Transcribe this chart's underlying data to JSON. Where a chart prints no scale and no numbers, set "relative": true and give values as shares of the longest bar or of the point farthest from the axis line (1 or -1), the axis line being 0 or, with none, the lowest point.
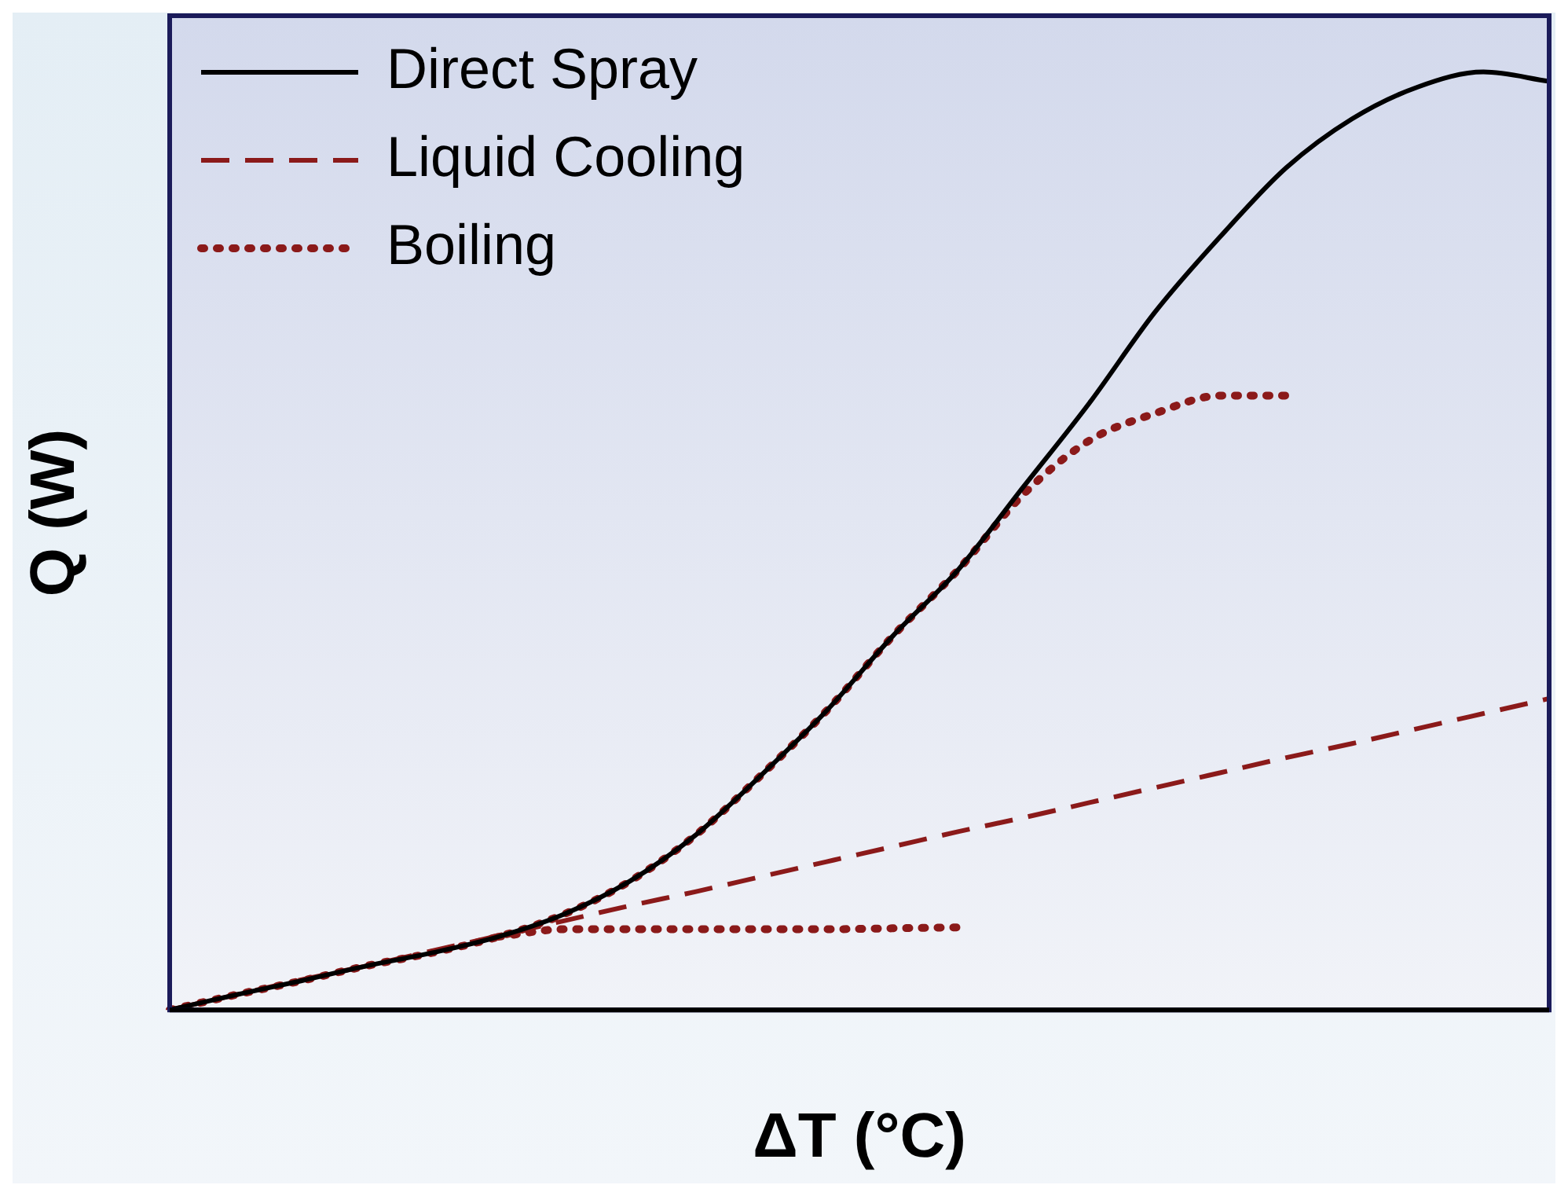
{
  "chart_data": {
    "type": "line",
    "relative": true,
    "xlabel": "ΔT (°C)",
    "ylabel": "Q (W)",
    "legend": "top left",
    "marker": "none",
    "categories": [
      null,
      null,
      null,
      null,
      null,
      null,
      null,
      null,
      null,
      null,
      null,
      null,
      null,
      null,
      null,
      null,
      null,
      null,
      null,
      null,
      null,
      null
    ],
    "series": [
      {
        "name": "Direct Spray",
        "color": "#000000",
        "line_style": "solid",
        "values": [
          0,
          0.016,
          0.031,
          0.047,
          0.061,
          0.078,
          0.102,
          0.137,
          0.186,
          0.25,
          0.319,
          0.398,
          0.469,
          0.558,
          0.647,
          0.744,
          0.825,
          0.898,
          0.95,
          0.984,
          1.0,
          0.99
        ]
      },
      {
        "name": "Liquid Cooling",
        "color": "#8b1a1a",
        "line_style": "dashed",
        "values": [
          0,
          0.016,
          0.032,
          0.047,
          0.063,
          0.079,
          0.095,
          0.111,
          0.126,
          0.142,
          0.158,
          0.174,
          0.19,
          0.205,
          0.221,
          0.237,
          0.253,
          0.269,
          0.284,
          0.3,
          0.316,
          0.332
        ]
      },
      {
        "name": "Boiling",
        "color": "#8b1a1a",
        "line_style": "dotted",
        "values": [
          0,
          0.016,
          0.031,
          0.047,
          0.061,
          0.078,
          0.102,
          0.137,
          0.186,
          0.25,
          0.319,
          0.398,
          0.469,
          0.55,
          0.607,
          0.636,
          0.655,
          0.655,
          null,
          null,
          null,
          null
        ]
      },
      {
        "color": "#8b1a1a",
        "line_style": "dotted",
        "values": [
          null,
          null,
          null,
          null,
          null,
          0.078,
          0.086,
          0.086,
          0.086,
          0.086,
          0.086,
          0.087,
          0.088,
          null,
          null,
          null,
          null,
          null,
          null,
          null,
          null,
          null
        ]
      }
    ]
  }
}
